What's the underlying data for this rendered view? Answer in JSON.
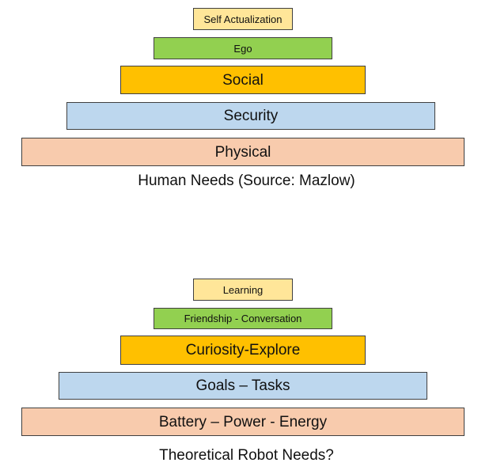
{
  "colors": {
    "self_level": "#ffe699",
    "ego_level": "#92d050",
    "social_level": "#ffc000",
    "security_level": "#bdd7ee",
    "physical_level": "#f8cbad"
  },
  "human_pyramid": {
    "levels": [
      "Self Actualization",
      "Ego",
      "Social",
      "Security",
      "Physical"
    ],
    "caption": "Human Needs (Source: Mazlow)"
  },
  "robot_pyramid": {
    "levels": [
      "Learning",
      "Friendship - Conversation",
      "Curiosity-Explore",
      "Goals – Tasks",
      "Battery – Power - Energy"
    ],
    "caption": "Theoretical Robot Needs?"
  }
}
